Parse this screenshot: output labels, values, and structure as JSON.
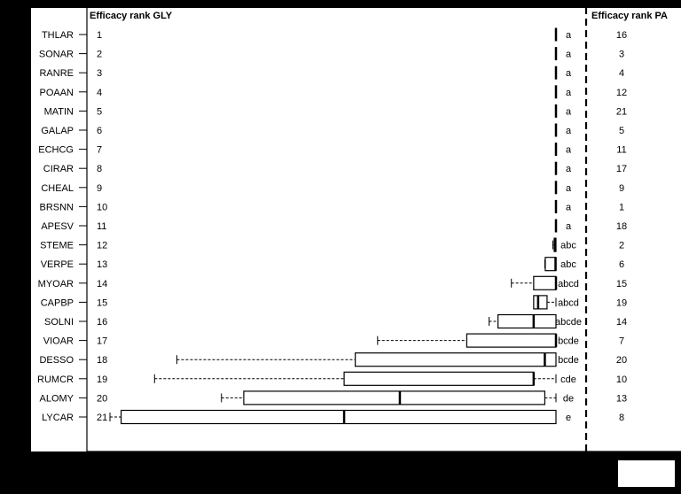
{
  "chart_data": {
    "type": "boxplot",
    "header_left": "Efficacy rank GLY",
    "header_right": "Efficacy rank PA",
    "categories": [
      "THLAR",
      "SONAR",
      "RANRE",
      "POAAN",
      "MATIN",
      "GALAP",
      "ECHCG",
      "CIRAR",
      "CHEAL",
      "BRSNN",
      "APESV",
      "STEME",
      "VERPE",
      "MYOAR",
      "CAPBP",
      "SOLNI",
      "VIOAR",
      "DESSO",
      "RUMCR",
      "ALOMY",
      "LYCAR"
    ],
    "rank_gly": [
      "1",
      "2",
      "3",
      "4",
      "5",
      "6",
      "7",
      "8",
      "9",
      "10",
      "11",
      "12",
      "13",
      "14",
      "15",
      "16",
      "17",
      "18",
      "19",
      "20",
      "21"
    ],
    "letters": [
      "a",
      "a",
      "a",
      "a",
      "a",
      "a",
      "a",
      "a",
      "a",
      "a",
      "a",
      "abc",
      "abc",
      "abcd",
      "abcd",
      "abcde",
      "bcde",
      "bcde",
      "cde",
      "de",
      "e"
    ],
    "rank_pa": [
      "16",
      "3",
      "4",
      "12",
      "21",
      "5",
      "11",
      "17",
      "9",
      "1",
      "18",
      "2",
      "6",
      "15",
      "19",
      "14",
      "7",
      "20",
      "10",
      "13",
      "8"
    ],
    "xlim": [
      0,
      100
    ],
    "reference_line": 96,
    "boxes": [
      {
        "min": 100,
        "q1": 100,
        "median": 100,
        "q3": 100,
        "max": 100
      },
      {
        "min": 100,
        "q1": 100,
        "median": 100,
        "q3": 100,
        "max": 100
      },
      {
        "min": 100,
        "q1": 100,
        "median": 100,
        "q3": 100,
        "max": 100
      },
      {
        "min": 100,
        "q1": 100,
        "median": 100,
        "q3": 100,
        "max": 100
      },
      {
        "min": 100,
        "q1": 100,
        "median": 100,
        "q3": 100,
        "max": 100
      },
      {
        "min": 100,
        "q1": 100,
        "median": 100,
        "q3": 100,
        "max": 100
      },
      {
        "min": 100,
        "q1": 100,
        "median": 100,
        "q3": 100,
        "max": 100
      },
      {
        "min": 100,
        "q1": 100,
        "median": 100,
        "q3": 100,
        "max": 100
      },
      {
        "min": 100,
        "q1": 100,
        "median": 100,
        "q3": 100,
        "max": 100
      },
      {
        "min": 100,
        "q1": 100,
        "median": 100,
        "q3": 100,
        "max": 100
      },
      {
        "min": 100,
        "q1": 100,
        "median": 100,
        "q3": 100,
        "max": 100
      },
      {
        "min": 99.3,
        "q1": 99.6,
        "median": 99.8,
        "q3": 100,
        "max": 100
      },
      {
        "min": 97.5,
        "q1": 97.6,
        "median": 99.9,
        "q3": 100,
        "max": 100
      },
      {
        "min": 90,
        "q1": 95,
        "median": 100,
        "q3": 100,
        "max": 100
      },
      {
        "min": 95,
        "q1": 95,
        "median": 96,
        "q3": 98,
        "max": 100
      },
      {
        "min": 85,
        "q1": 87,
        "median": 95,
        "q3": 100,
        "max": 100
      },
      {
        "min": 60,
        "q1": 80,
        "median": 100,
        "q3": 100,
        "max": 100
      },
      {
        "min": 15,
        "q1": 55,
        "median": 97.5,
        "q3": 100,
        "max": 100
      },
      {
        "min": 10,
        "q1": 52.5,
        "median": 95,
        "q3": 95,
        "max": 100
      },
      {
        "min": 25,
        "q1": 30,
        "median": 65,
        "q3": 97.5,
        "max": 100
      },
      {
        "min": 0,
        "q1": 2.5,
        "median": 52.5,
        "q3": 100,
        "max": 100
      }
    ]
  }
}
